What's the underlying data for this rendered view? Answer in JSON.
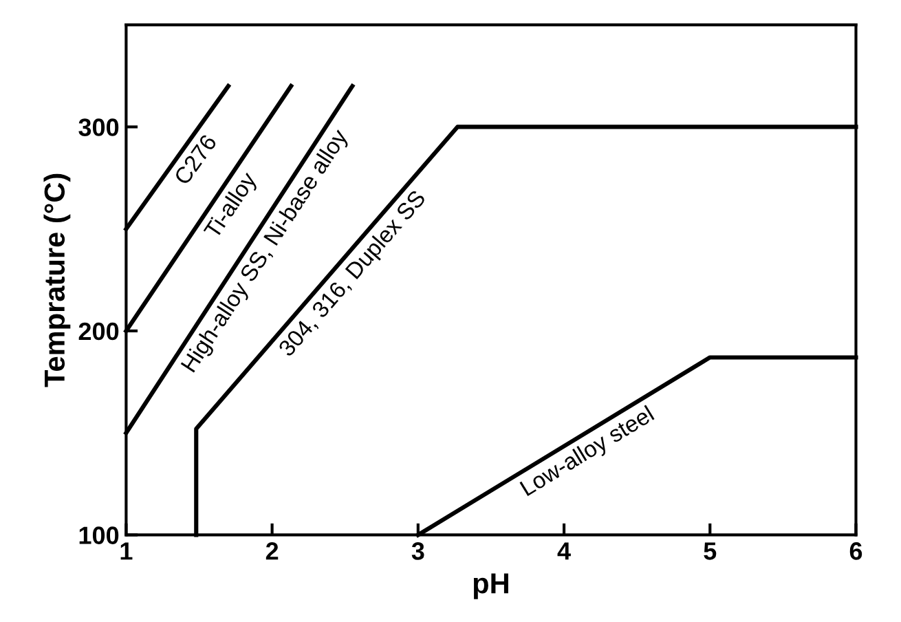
{
  "chart_data": {
    "type": "line",
    "xlabel": "pH",
    "ylabel": "Temprature (°C)",
    "xlim": [
      1,
      6
    ],
    "ylim": [
      100,
      350
    ],
    "xticks": [
      1,
      2,
      3,
      4,
      5,
      6
    ],
    "yticks": [
      100,
      200,
      300
    ],
    "grid": false,
    "legend": false,
    "marker": "none",
    "line_style": "solid",
    "series": [
      {
        "color": "#000000",
        "x": [
          1,
          1.7
        ],
        "values": [
          250,
          320
        ]
      },
      {
        "color": "#000000",
        "x": [
          1,
          2.13
        ],
        "values": [
          200,
          320
        ]
      },
      {
        "color": "#000000",
        "x": [
          1,
          2.55
        ],
        "values": [
          150,
          320
        ]
      },
      {
        "color": "#000000",
        "x": [
          1.48,
          1.48,
          3.27,
          6
        ],
        "values": [
          100,
          152,
          300,
          300
        ]
      },
      {
        "color": "#000000",
        "x": [
          3,
          5,
          6
        ],
        "values": [
          100,
          187,
          187
        ]
      }
    ],
    "annotations": [
      "C276",
      "Ti-alloy",
      "High-alloy SS, Ni-base alloy",
      "304, 316, Duplex SS",
      "Low-alloy steel"
    ]
  }
}
